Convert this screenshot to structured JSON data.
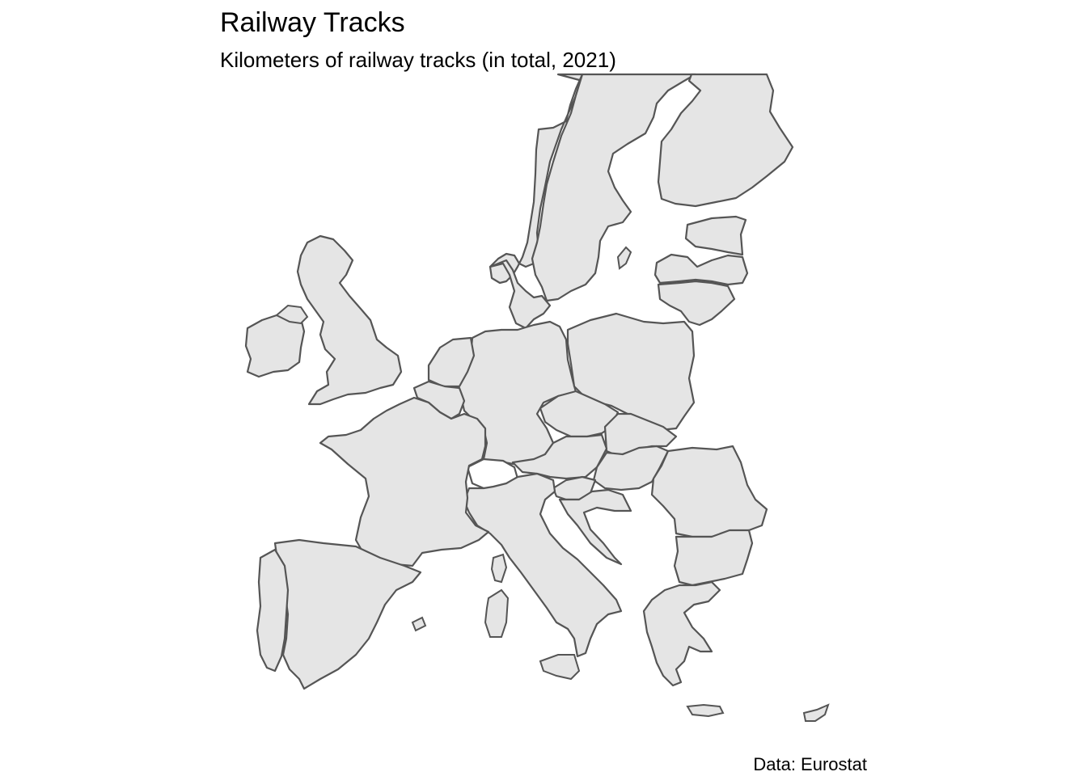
{
  "map": {
    "title": "Railway Tracks",
    "subtitle": "Kilometers of railway tracks (in total, 2021)",
    "caption": "Data: Eurostat",
    "region": "Europe",
    "fill_color": "#e5e5e5",
    "border_color": "#555555",
    "no_data_color": "#ffffff"
  }
}
